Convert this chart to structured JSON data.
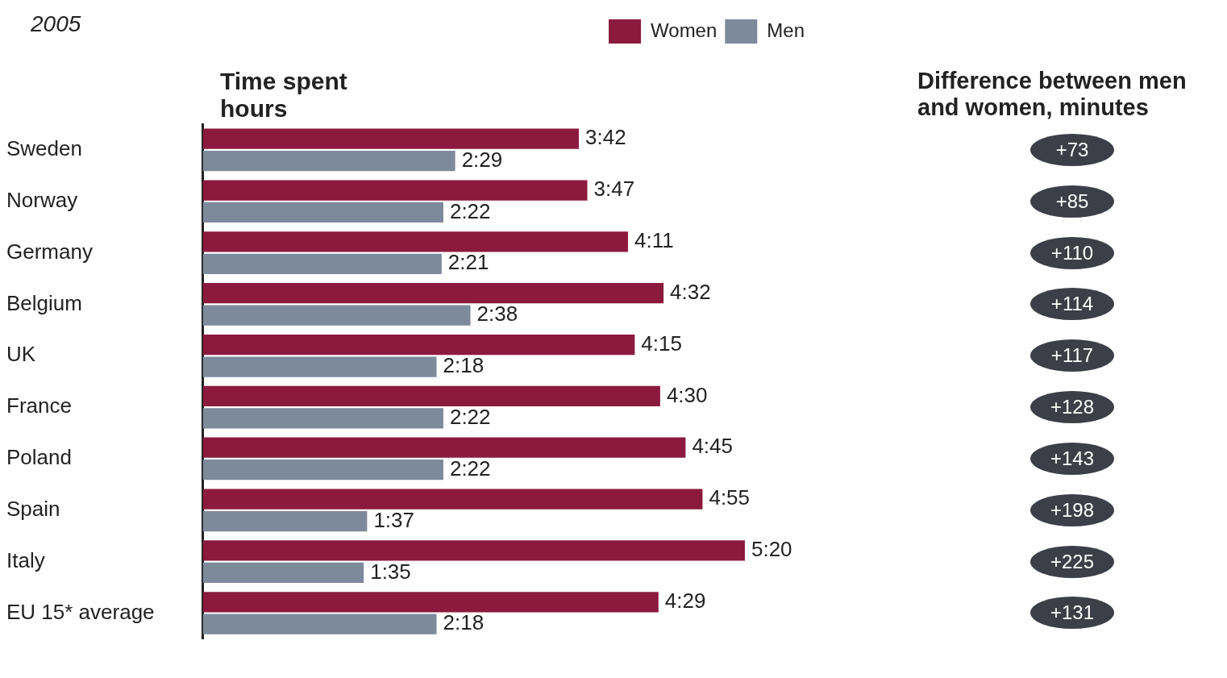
{
  "chart_data": {
    "type": "bar",
    "orientation": "horizontal",
    "title": "2005",
    "xlabel": "Time spent hours",
    "legend": "top",
    "categories": [
      "Sweden",
      "Norway",
      "Germany",
      "Belgium",
      "UK",
      "France",
      "Poland",
      "Spain",
      "Italy",
      "EU 15* average"
    ],
    "series": [
      {
        "name": "Women",
        "color": "#8b1a3e",
        "values": [
          3.7,
          3.7833,
          4.1833,
          4.5333,
          4.25,
          4.5,
          4.75,
          4.9167,
          5.3333,
          4.4833
        ],
        "value_labels": [
          "3:42",
          "3:47",
          "4:11",
          "4:32",
          "4:15",
          "4:30",
          "4:45",
          "4:55",
          "5:20",
          "4:29"
        ]
      },
      {
        "name": "Men",
        "color": "#7d8a9c",
        "values": [
          2.4833,
          2.3667,
          2.35,
          2.6333,
          2.3,
          2.3667,
          2.3667,
          1.6167,
          1.5833,
          2.3
        ],
        "value_labels": [
          "2:29",
          "2:22",
          "2:21",
          "2:38",
          "2:18",
          "2:22",
          "2:22",
          "1:37",
          "1:35",
          "2:18"
        ]
      }
    ],
    "annotations": [
      "Difference between men and women, minutes",
      "+73",
      "+85",
      "+110",
      "+114",
      "+117",
      "+128",
      "+143",
      "+198",
      "+225",
      "+131"
    ]
  }
}
